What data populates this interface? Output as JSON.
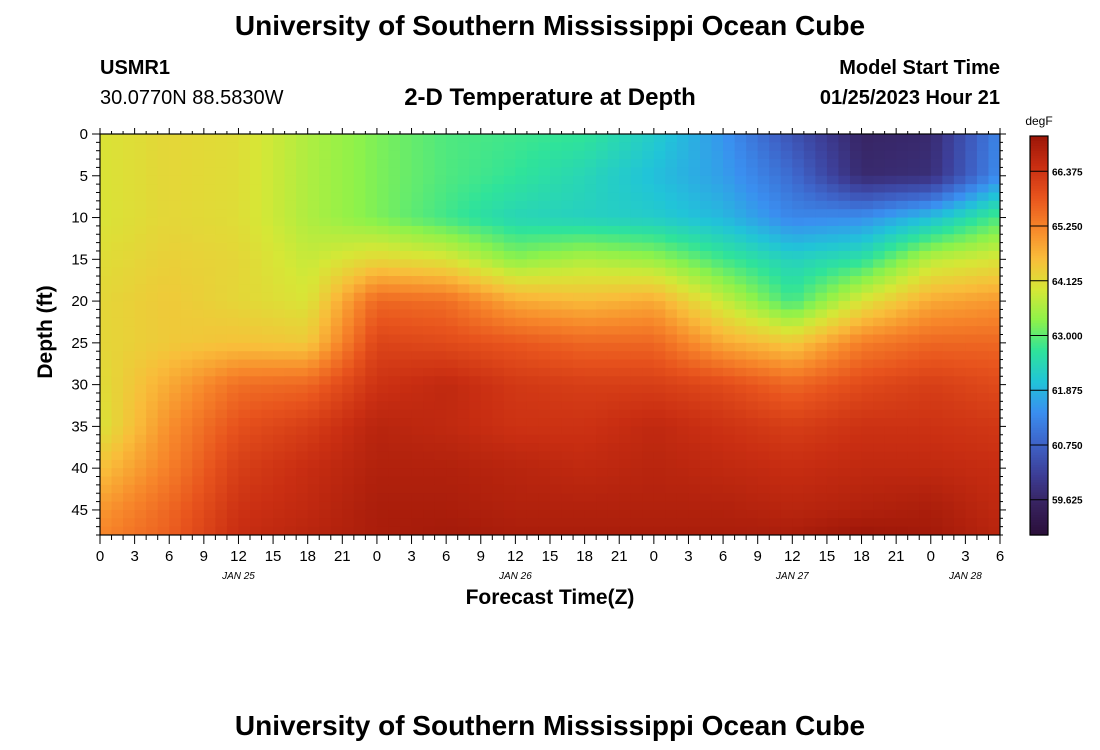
{
  "header": {
    "title": "University of Southern Mississippi Ocean Cube",
    "station": "USMR1",
    "coords": "30.0770N  88.5830W",
    "subtitle": "2-D Temperature at Depth",
    "start_label": "Model Start Time",
    "start_value": "01/25/2023 Hour 21"
  },
  "footer": {
    "title": "University of Southern Mississippi Ocean Cube"
  },
  "chart_data": {
    "type": "heatmap",
    "title": "2-D Temperature at Depth",
    "xlabel": "Forecast Time(Z)",
    "ylabel": "Depth (ft)",
    "x_tick_labels": [
      "0",
      "3",
      "6",
      "9",
      "12",
      "15",
      "18",
      "21",
      "0",
      "3",
      "6",
      "9",
      "12",
      "15",
      "18",
      "21",
      "0",
      "3",
      "6",
      "9",
      "12",
      "15",
      "18",
      "21",
      "0",
      "3",
      "6"
    ],
    "x_day_labels": [
      {
        "label": "JAN 25",
        "hour_index": 4
      },
      {
        "label": "JAN 26",
        "hour_index": 12
      },
      {
        "label": "JAN 27",
        "hour_index": 20
      },
      {
        "label": "JAN 28",
        "hour_index": 25
      }
    ],
    "xlim_hours": [
      0,
      78
    ],
    "y_ticks": [
      0,
      5,
      10,
      15,
      20,
      25,
      30,
      35,
      40,
      45
    ],
    "ylim": [
      0,
      48
    ],
    "colorbar": {
      "unit": "degF",
      "ticks": [
        "66.375",
        "65.250",
        "64.125",
        "63.000",
        "61.875",
        "60.750",
        "59.625"
      ],
      "range": [
        58.9,
        67.1
      ],
      "colors": [
        "#2b0f3a",
        "#37225e",
        "#3d3f99",
        "#3e64c9",
        "#3a8ff0",
        "#21c4d8",
        "#2fe39a",
        "#8ef24a",
        "#d6e736",
        "#f9bd3a",
        "#f7862a",
        "#e8541d",
        "#c92e12",
        "#9c1608"
      ]
    },
    "field": {
      "times_h": [
        0,
        6,
        12,
        18,
        24,
        30,
        36,
        42,
        48,
        54,
        60,
        66,
        72,
        78
      ],
      "depths_ft": [
        0,
        5,
        10,
        15,
        20,
        25,
        30,
        35,
        40,
        45,
        48
      ],
      "values_degF": [
        [
          64.0,
          64.2,
          64.1,
          63.6,
          63.2,
          62.9,
          62.8,
          62.7,
          62.2,
          61.5,
          60.5,
          59.6,
          59.7,
          61.3
        ],
        [
          64.0,
          64.2,
          64.1,
          63.6,
          63.2,
          62.9,
          62.7,
          62.4,
          62.0,
          61.6,
          60.9,
          59.7,
          59.8,
          61.4
        ],
        [
          64.0,
          64.2,
          64.1,
          63.6,
          63.2,
          62.8,
          62.4,
          62.3,
          62.2,
          61.9,
          61.3,
          61.4,
          62.0,
          62.9
        ],
        [
          64.1,
          64.3,
          64.2,
          63.8,
          64.2,
          64.0,
          63.3,
          63.6,
          63.4,
          62.8,
          62.3,
          62.6,
          63.7,
          64.0
        ],
        [
          64.2,
          64.4,
          64.2,
          64.0,
          65.6,
          65.5,
          64.8,
          64.6,
          64.8,
          63.8,
          62.8,
          64.0,
          64.8,
          65.0
        ],
        [
          64.2,
          64.4,
          64.5,
          64.4,
          66.1,
          66.0,
          65.8,
          65.6,
          65.6,
          64.8,
          64.4,
          65.3,
          65.6,
          65.6
        ],
        [
          64.1,
          64.8,
          65.5,
          65.6,
          66.4,
          66.6,
          66.3,
          66.2,
          66.2,
          66.0,
          65.6,
          66.0,
          66.2,
          66.0
        ],
        [
          64.0,
          65.1,
          65.9,
          66.2,
          66.7,
          66.6,
          66.4,
          66.4,
          66.6,
          66.4,
          66.2,
          66.4,
          66.4,
          66.3
        ],
        [
          64.5,
          65.3,
          66.2,
          66.5,
          66.8,
          66.8,
          66.7,
          66.6,
          66.7,
          66.6,
          66.5,
          66.6,
          66.6,
          66.5
        ],
        [
          65.0,
          65.6,
          66.4,
          66.6,
          66.9,
          66.9,
          66.8,
          66.8,
          66.8,
          66.8,
          66.7,
          66.8,
          66.9,
          66.6
        ],
        [
          65.2,
          65.7,
          66.5,
          66.7,
          66.9,
          67.0,
          66.9,
          66.9,
          66.9,
          66.9,
          66.9,
          67.1,
          67.0,
          66.7
        ]
      ]
    }
  }
}
